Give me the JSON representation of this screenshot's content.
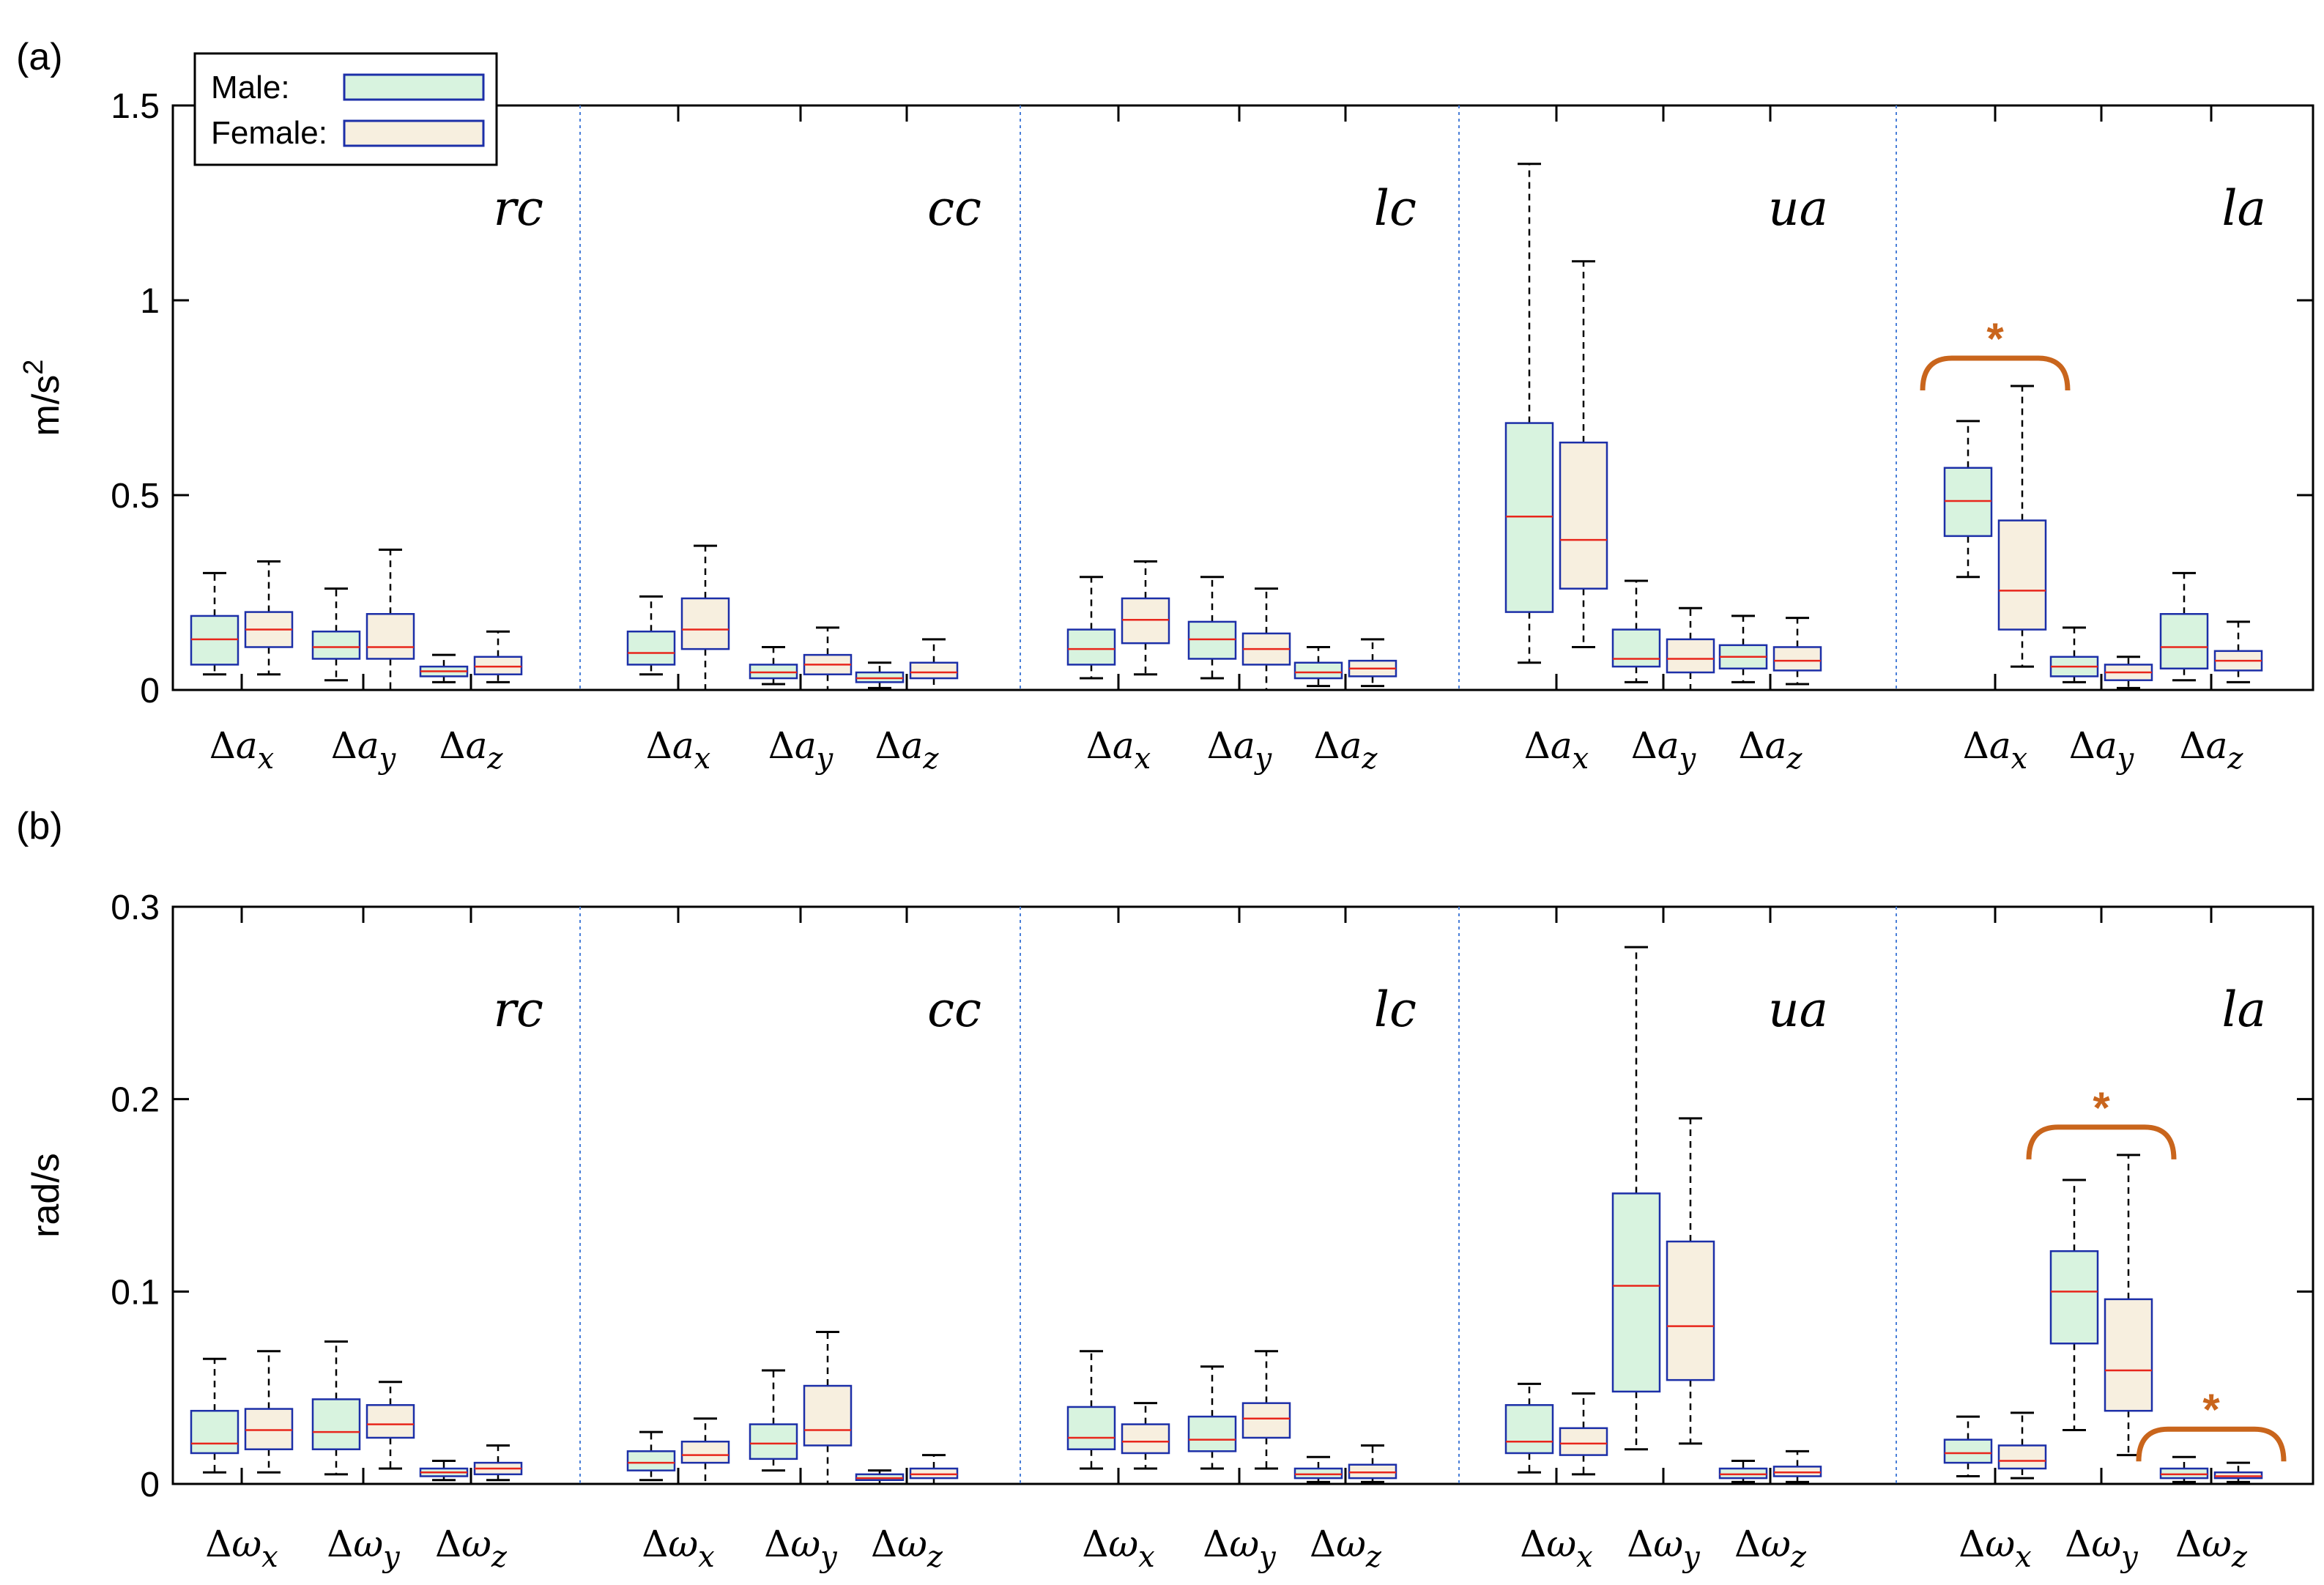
{
  "colors": {
    "male_fill": "#d8f3df",
    "female_fill": "#f7efdf",
    "box_edge": "#1c2fa8",
    "median": "#e8261c",
    "separator": "#4a7fd8",
    "bracket": "#c9651c"
  },
  "legend": {
    "male": "Male:",
    "female": "Female:"
  },
  "chart_data": [
    {
      "type": "box",
      "panel": "(a)",
      "ylabel_base": "m/s",
      "ylabel_exp": "2",
      "ylim": [
        0,
        1.5
      ],
      "yticks": [
        0,
        0.5,
        1,
        1.5
      ],
      "ytick_labels": [
        "0",
        "0.5",
        "1",
        "1.5"
      ],
      "groups": [
        "rc",
        "cc",
        "lc",
        "ua",
        "la"
      ],
      "categories": [
        {
          "base": "Δa",
          "sub": "x"
        },
        {
          "base": "Δa",
          "sub": "y"
        },
        {
          "base": "Δa",
          "sub": "z"
        }
      ],
      "series": [
        "Male",
        "Female"
      ],
      "boxes": [
        [
          [
            [
              0.04,
              0.065,
              0.13,
              0.19,
              0.3
            ],
            [
              0.04,
              0.11,
              0.155,
              0.2,
              0.33
            ]
          ],
          [
            [
              0.025,
              0.08,
              0.11,
              0.15,
              0.26
            ],
            [
              0.0,
              0.08,
              0.11,
              0.195,
              0.36
            ]
          ],
          [
            [
              0.02,
              0.035,
              0.048,
              0.06,
              0.09
            ],
            [
              0.02,
              0.04,
              0.06,
              0.085,
              0.15
            ]
          ]
        ],
        [
          [
            [
              0.04,
              0.065,
              0.095,
              0.15,
              0.24
            ],
            [
              0.0,
              0.105,
              0.155,
              0.235,
              0.37
            ]
          ],
          [
            [
              0.015,
              0.03,
              0.045,
              0.065,
              0.11
            ],
            [
              0.0,
              0.04,
              0.065,
              0.09,
              0.16
            ]
          ],
          [
            [
              0.005,
              0.02,
              0.03,
              0.045,
              0.07
            ],
            [
              0.0,
              0.03,
              0.045,
              0.07,
              0.13
            ]
          ]
        ],
        [
          [
            [
              0.03,
              0.065,
              0.105,
              0.155,
              0.29
            ],
            [
              0.04,
              0.12,
              0.18,
              0.235,
              0.33
            ]
          ],
          [
            [
              0.03,
              0.08,
              0.13,
              0.175,
              0.29
            ],
            [
              0.0,
              0.065,
              0.105,
              0.145,
              0.26
            ]
          ],
          [
            [
              0.01,
              0.03,
              0.045,
              0.07,
              0.11
            ],
            [
              0.01,
              0.035,
              0.055,
              0.075,
              0.13
            ]
          ]
        ],
        [
          [
            [
              0.07,
              0.2,
              0.445,
              0.685,
              1.35
            ],
            [
              0.11,
              0.26,
              0.385,
              0.635,
              1.1
            ]
          ],
          [
            [
              0.02,
              0.06,
              0.08,
              0.155,
              0.28
            ],
            [
              0.0,
              0.045,
              0.08,
              0.13,
              0.21
            ]
          ],
          [
            [
              0.02,
              0.055,
              0.085,
              0.115,
              0.19
            ],
            [
              0.015,
              0.05,
              0.075,
              0.11,
              0.185
            ]
          ]
        ],
        [
          [
            [
              0.29,
              0.395,
              0.485,
              0.57,
              0.69
            ],
            [
              0.06,
              0.155,
              0.255,
              0.435,
              0.78
            ]
          ],
          [
            [
              0.02,
              0.035,
              0.06,
              0.085,
              0.16
            ],
            [
              0.005,
              0.025,
              0.045,
              0.065,
              0.085
            ]
          ],
          [
            [
              0.025,
              0.055,
              0.11,
              0.195,
              0.3
            ],
            [
              0.02,
              0.05,
              0.075,
              0.1,
              0.175
            ]
          ]
        ]
      ],
      "significance": [
        {
          "group": "la",
          "category": 0,
          "label": "*"
        }
      ]
    },
    {
      "type": "box",
      "panel": "(b)",
      "ylabel": "rad/s",
      "ylim": [
        0,
        0.3
      ],
      "yticks": [
        0,
        0.1,
        0.2,
        0.3
      ],
      "ytick_labels": [
        "0",
        "0.1",
        "0.2",
        "0.3"
      ],
      "groups": [
        "rc",
        "cc",
        "lc",
        "ua",
        "la"
      ],
      "categories": [
        {
          "base": "Δω",
          "sub": "x"
        },
        {
          "base": "Δω",
          "sub": "y"
        },
        {
          "base": "Δω",
          "sub": "z"
        }
      ],
      "series": [
        "Male",
        "Female"
      ],
      "boxes": [
        [
          [
            [
              0.006,
              0.016,
              0.021,
              0.038,
              0.065
            ],
            [
              0.006,
              0.018,
              0.028,
              0.039,
              0.069
            ]
          ],
          [
            [
              0.005,
              0.018,
              0.027,
              0.044,
              0.074
            ],
            [
              0.008,
              0.024,
              0.031,
              0.041,
              0.053
            ]
          ],
          [
            [
              0.002,
              0.004,
              0.006,
              0.008,
              0.012
            ],
            [
              0.002,
              0.005,
              0.008,
              0.011,
              0.02
            ]
          ]
        ],
        [
          [
            [
              0.002,
              0.007,
              0.011,
              0.017,
              0.027
            ],
            [
              0.0,
              0.011,
              0.015,
              0.022,
              0.034
            ]
          ],
          [
            [
              0.007,
              0.013,
              0.021,
              0.031,
              0.059
            ],
            [
              0.0,
              0.02,
              0.028,
              0.051,
              0.079
            ]
          ],
          [
            [
              0.0,
              0.002,
              0.003,
              0.005,
              0.007
            ],
            [
              0.0,
              0.003,
              0.005,
              0.008,
              0.015
            ]
          ]
        ],
        [
          [
            [
              0.008,
              0.018,
              0.024,
              0.04,
              0.069
            ],
            [
              0.008,
              0.016,
              0.022,
              0.031,
              0.042
            ]
          ],
          [
            [
              0.008,
              0.017,
              0.023,
              0.035,
              0.061
            ],
            [
              0.008,
              0.024,
              0.034,
              0.042,
              0.069
            ]
          ],
          [
            [
              0.001,
              0.003,
              0.005,
              0.008,
              0.014
            ],
            [
              0.001,
              0.003,
              0.006,
              0.01,
              0.02
            ]
          ]
        ],
        [
          [
            [
              0.006,
              0.016,
              0.022,
              0.041,
              0.052
            ],
            [
              0.005,
              0.015,
              0.021,
              0.029,
              0.047
            ]
          ],
          [
            [
              0.018,
              0.048,
              0.103,
              0.151,
              0.279
            ],
            [
              0.021,
              0.054,
              0.082,
              0.126,
              0.19
            ]
          ],
          [
            [
              0.001,
              0.003,
              0.005,
              0.008,
              0.012
            ],
            [
              0.001,
              0.004,
              0.006,
              0.009,
              0.017
            ]
          ]
        ],
        [
          [
            [
              0.004,
              0.011,
              0.016,
              0.023,
              0.035
            ],
            [
              0.003,
              0.008,
              0.012,
              0.02,
              0.037
            ]
          ],
          [
            [
              0.028,
              0.073,
              0.1,
              0.121,
              0.158
            ],
            [
              0.015,
              0.038,
              0.059,
              0.096,
              0.171
            ]
          ],
          [
            [
              0.001,
              0.003,
              0.005,
              0.008,
              0.014
            ],
            [
              0.001,
              0.003,
              0.004,
              0.006,
              0.011
            ]
          ]
        ]
      ],
      "significance": [
        {
          "group": "la",
          "category": 1,
          "label": "*"
        },
        {
          "group": "la",
          "category": 2,
          "label": "*"
        }
      ]
    }
  ]
}
